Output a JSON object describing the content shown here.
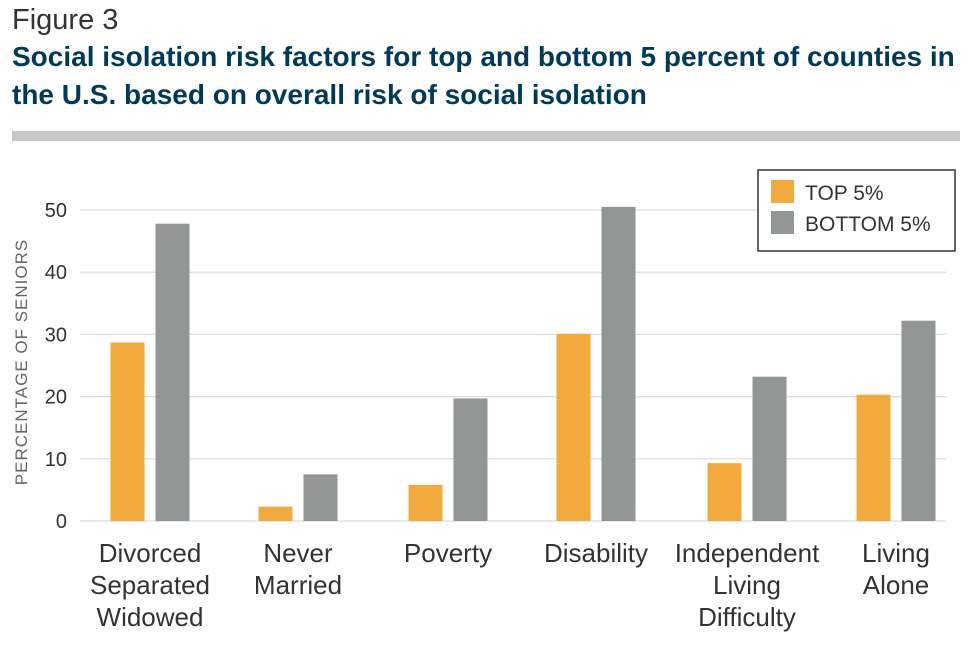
{
  "figure_label": "Figure 3",
  "title": "Social isolation risk factors for top and bottom 5 percent of counties in the U.S. based on overall risk of social isolation",
  "colors": {
    "top": "#f2a93e",
    "bottom": "#929695",
    "title": "#003a58",
    "rule": "#c7c7c7",
    "grid": "#dcdcdc"
  },
  "chart_data": {
    "type": "bar",
    "title": "",
    "xlabel": "",
    "ylabel": "PERCENTAGE OF SENIORS",
    "ylim": [
      0,
      50
    ],
    "yticks": [
      0,
      10,
      20,
      30,
      40,
      50
    ],
    "grid": true,
    "legend_position": "top-right",
    "categories": [
      [
        "Divorced",
        "Separated",
        "Widowed"
      ],
      [
        "Never",
        "Married"
      ],
      [
        "Poverty"
      ],
      [
        "Disability"
      ],
      [
        "Independent",
        "Living",
        "Difficulty"
      ],
      [
        "Living",
        "Alone"
      ]
    ],
    "series": [
      {
        "name": "TOP 5%",
        "color": "#f2a93e",
        "values": [
          28.7,
          2.3,
          5.8,
          30.1,
          9.3,
          20.3
        ]
      },
      {
        "name": "BOTTOM 5%",
        "color": "#929695",
        "values": [
          47.8,
          7.5,
          19.7,
          50.5,
          23.2,
          32.2
        ]
      }
    ]
  }
}
